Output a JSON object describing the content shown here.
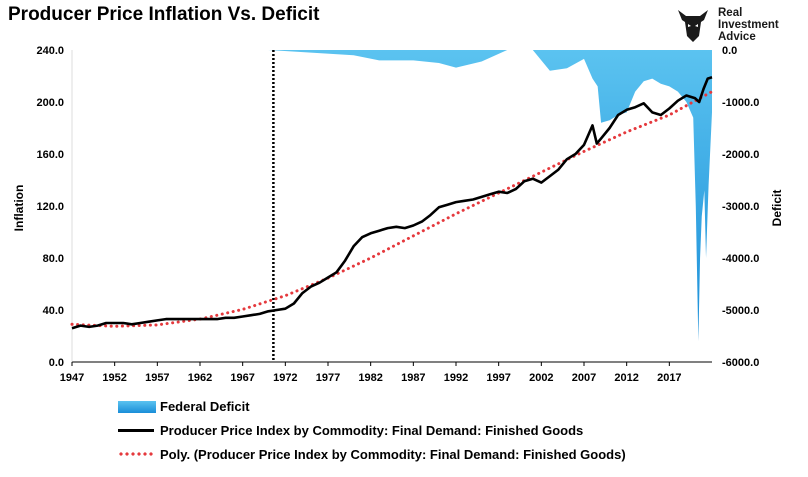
{
  "title": "Producer Price Inflation Vs. Deficit",
  "brand": {
    "line1": "Real",
    "line2": "Investment",
    "line3": "Advice",
    "icon": "bull-head-logo-icon"
  },
  "colors": {
    "ppi": "#000000",
    "trend": "#e5393d",
    "deficit_top": "#5bc3f0",
    "deficit_bottom": "#1a8ed8"
  },
  "legend": {
    "deficit": "Federal Deficit",
    "ppi": "Producer Price Index by Commodity: Final Demand: Finished Goods",
    "trend": "Poly. (Producer Price Index by Commodity: Final Demand: Finished Goods)"
  },
  "chart_data": {
    "type": "line",
    "ylabel": "Inflation",
    "y2label": "Deficit",
    "ylim": [
      0,
      240
    ],
    "y2lim": [
      -6000,
      0
    ],
    "xlim": [
      1947,
      2022
    ],
    "yticks": [
      "0.0",
      "40.0",
      "80.0",
      "120.0",
      "160.0",
      "200.0",
      "240.0"
    ],
    "y2ticks": [
      "-6000.0",
      "-5000.0",
      "-4000.0",
      "-3000.0",
      "-2000.0",
      "-1000.0",
      "0.0"
    ],
    "xticks": [
      "1947",
      "1952",
      "1957",
      "1962",
      "1967",
      "1972",
      "1977",
      "1982",
      "1987",
      "1992",
      "1997",
      "2002",
      "2007",
      "2012",
      "2017"
    ],
    "marker_line_x": 1970.6,
    "legend_position": "bottom",
    "series": [
      {
        "name": "Producer Price Index by Commodity: Final Demand: Finished Goods",
        "axis": "left",
        "x": [
          1947,
          1948,
          1949,
          1950,
          1951,
          1952,
          1953,
          1954,
          1955,
          1956,
          1957,
          1958,
          1959,
          1960,
          1961,
          1962,
          1963,
          1964,
          1965,
          1966,
          1967,
          1968,
          1969,
          1970,
          1971,
          1972,
          1973,
          1974,
          1975,
          1976,
          1977,
          1978,
          1979,
          1980,
          1981,
          1982,
          1983,
          1984,
          1985,
          1986,
          1987,
          1988,
          1989,
          1990,
          1991,
          1992,
          1993,
          1994,
          1995,
          1996,
          1997,
          1998,
          1999,
          2000,
          2001,
          2002,
          2003,
          2004,
          2005,
          2006,
          2007,
          2008,
          2008.5,
          2009,
          2010,
          2011,
          2012,
          2013,
          2014,
          2015,
          2016,
          2017,
          2018,
          2019,
          2020,
          2020.5,
          2021,
          2021.5,
          2022
        ],
        "values": [
          26,
          28,
          27,
          28,
          30,
          30,
          30,
          29,
          30,
          31,
          32,
          33,
          33,
          33,
          33,
          33,
          33,
          33,
          34,
          34,
          35,
          36,
          37,
          39,
          40,
          41,
          45,
          53,
          58,
          61,
          65,
          69,
          78,
          89,
          96,
          99,
          101,
          103,
          104,
          103,
          105,
          108,
          113,
          119,
          121,
          123,
          124,
          125,
          127,
          129,
          131,
          130,
          133,
          139,
          141,
          138,
          143,
          148,
          156,
          160,
          167,
          182,
          168,
          172,
          180,
          190,
          194,
          196,
          199,
          192,
          190,
          195,
          201,
          205,
          203,
          200,
          210,
          218,
          219
        ]
      },
      {
        "name": "Poly. (Producer Price Index by Commodity: Final Demand: Finished Goods)",
        "axis": "left",
        "x": [
          1947,
          1952,
          1957,
          1962,
          1967,
          1972,
          1977,
          1982,
          1987,
          1992,
          1997,
          2002,
          2007,
          2012,
          2017,
          2022
        ],
        "values": [
          29,
          27.5,
          28.5,
          33,
          40.5,
          51,
          64.5,
          80,
          97,
          114,
          130,
          146,
          162,
          177,
          190,
          208
        ]
      },
      {
        "name": "Federal Deficit",
        "axis": "right",
        "type": "area",
        "x": [
          1947,
          1950,
          1955,
          1960,
          1965,
          1970,
          1975,
          1980,
          1983,
          1987,
          1990,
          1992,
          1995,
          1998,
          2000,
          2001,
          2003,
          2005,
          2007,
          2008,
          2008.6,
          2009,
          2010,
          2011,
          2012,
          2013,
          2014,
          2015,
          2016,
          2017,
          2018,
          2019,
          2019.8,
          2020.1,
          2020.4,
          2020.6,
          2020.8,
          2021.1,
          2021.3,
          2021.6,
          2022
        ],
        "values": [
          0,
          0,
          0,
          0,
          0,
          0,
          -50,
          -100,
          -200,
          -200,
          -250,
          -340,
          -220,
          0,
          0,
          0,
          -400,
          -350,
          -170,
          -550,
          -700,
          -1400,
          -1350,
          -1250,
          -1200,
          -800,
          -600,
          -550,
          -650,
          -700,
          -800,
          -1000,
          -1300,
          -3000,
          -5600,
          -4000,
          -3200,
          -2700,
          -4000,
          -2600,
          -1200
        ]
      }
    ]
  }
}
